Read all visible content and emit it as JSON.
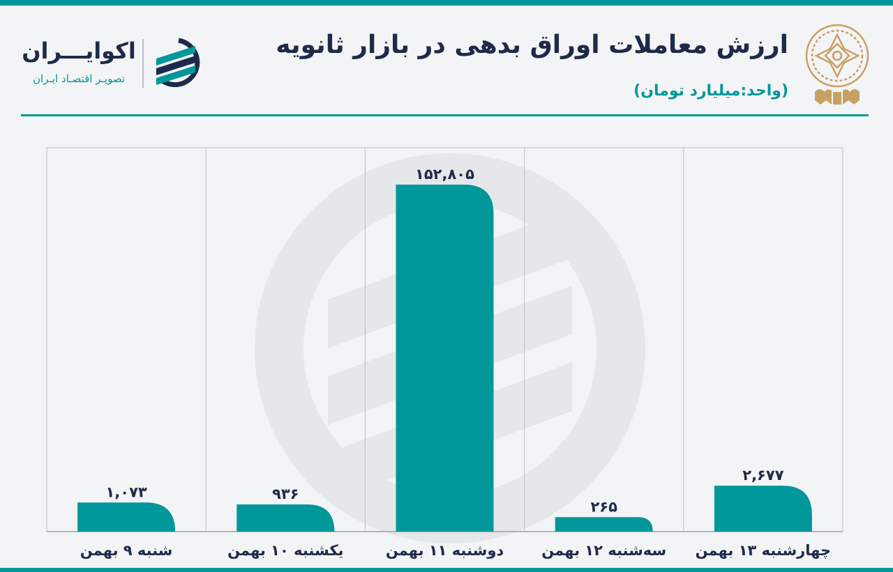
{
  "header": {
    "title": "ارزش معاملات اوراق بدهی در بازار ثانویه",
    "subtitle": "(واحد:میلیارد تومان)"
  },
  "brand": {
    "name": "اکوایـــران",
    "tagline": "تصویـر اقتصـاد ایـران",
    "logo_icon": "ecoiran-logo-icon",
    "seal_icon": "tehran-stock-exchange-seal-icon"
  },
  "colors": {
    "accent": "#00979a",
    "gold": "#c8a063",
    "text": "#1e2a4a",
    "grid": "#c4c7ca"
  },
  "chart_data": {
    "type": "bar",
    "title": "ارزش معاملات اوراق بدهی در بازار ثانویه",
    "ylabel": "",
    "xlabel": "",
    "categories": [
      "شنبه ۹ بهمن",
      "یکشنبه ۱۰ بهمن",
      "دوشنبه ۱۱ بهمن",
      "سه‌شنبه ۱۲ بهمن",
      "چهارشنبه ۱۳ بهمن"
    ],
    "values": [
      1073,
      936,
      152805,
      265,
      2677
    ],
    "value_labels": [
      "۱,۰۷۳",
      "۹۳۶",
      "۱۵۲,۸۰۵",
      "۲۶۵",
      "۲,۶۷۷"
    ],
    "grid": true,
    "legend": "none",
    "scale": "non-linear (short bars exaggerated)"
  }
}
